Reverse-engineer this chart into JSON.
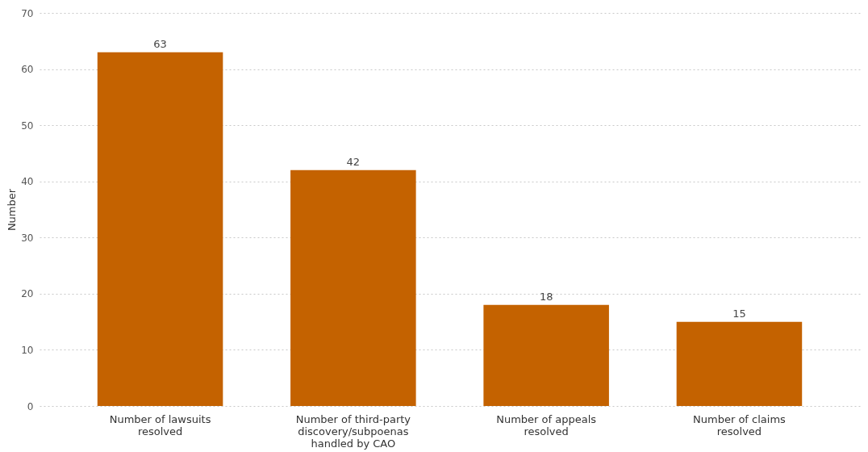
{
  "chart_data": {
    "type": "bar",
    "ylabel": "Number",
    "categories": [
      "Number of lawsuits resolved",
      "Number of third-party discovery/subpoenas handled by CAO",
      "Number of appeals resolved",
      "Number of claims resolved"
    ],
    "values": [
      63,
      42,
      18,
      15
    ],
    "color": "#c46200",
    "ylim": [
      0,
      70
    ],
    "yticks": [
      0,
      10,
      20,
      30,
      40,
      50,
      60,
      70
    ],
    "grid": "y",
    "data_labels": true
  }
}
